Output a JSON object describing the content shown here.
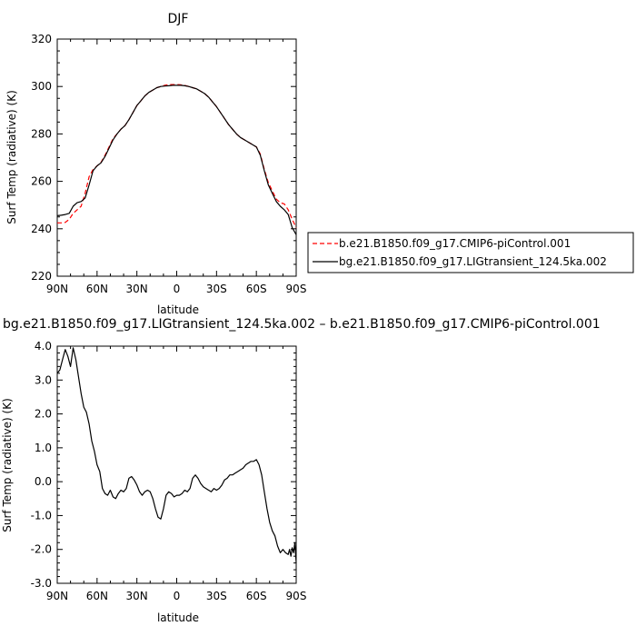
{
  "chart_data": [
    {
      "type": "line",
      "title": "DJF",
      "xlabel": "latitude",
      "ylabel": "Surf Temp (radiative) (K)",
      "x_ticks": [
        "90N",
        "60N",
        "30N",
        "0",
        "30S",
        "60S",
        "90S"
      ],
      "x_tick_values": [
        90,
        60,
        30,
        0,
        -30,
        -60,
        -90
      ],
      "y_ticks": [
        "220",
        "240",
        "260",
        "280",
        "300",
        "320"
      ],
      "ylim": [
        220,
        320
      ],
      "xlim": [
        90,
        -90
      ],
      "series": [
        {
          "name": "b.e21.B1850.f09_g17.CMIP6-piControl.001",
          "color": "#ff0000",
          "dash": "dashed",
          "x": [
            90,
            87,
            84,
            81,
            78,
            75,
            72,
            69,
            66,
            63,
            60,
            57,
            54,
            51,
            48,
            45,
            42,
            39,
            36,
            33,
            30,
            27,
            24,
            21,
            18,
            15,
            12,
            9,
            6,
            3,
            0,
            -3,
            -6,
            -9,
            -12,
            -15,
            -18,
            -21,
            -24,
            -27,
            -30,
            -33,
            -36,
            -39,
            -42,
            -45,
            -48,
            -51,
            -54,
            -57,
            -60,
            -63,
            -66,
            -69,
            -72,
            -75,
            -78,
            -81,
            -84,
            -87,
            -90
          ],
          "y": [
            242.5,
            242.5,
            242.7,
            244,
            246.5,
            248,
            249.5,
            255,
            262,
            265,
            266.5,
            268,
            271,
            274.5,
            278,
            280,
            282,
            283.5,
            286,
            289,
            292,
            294,
            296,
            297.5,
            298.5,
            299.5,
            300,
            300.5,
            300.8,
            300.8,
            300.8,
            300.7,
            300.5,
            300,
            299.5,
            299,
            298,
            297,
            295.5,
            293.5,
            291.5,
            289,
            286.5,
            284,
            282,
            280,
            278.5,
            277.5,
            276.5,
            275.5,
            274.5,
            271.5,
            265,
            259.5,
            256,
            252.5,
            251,
            250.5,
            248,
            244,
            240.5
          ]
        },
        {
          "name": "bg.e21.B1850.f09_g17.LIGtransient_124.5ka.002",
          "color": "#000000",
          "dash": "solid",
          "x": [
            90,
            87,
            84,
            81,
            78,
            75,
            72,
            69,
            66,
            63,
            60,
            57,
            54,
            51,
            48,
            45,
            42,
            39,
            36,
            33,
            30,
            27,
            24,
            21,
            18,
            15,
            12,
            9,
            6,
            3,
            0,
            -3,
            -6,
            -9,
            -12,
            -15,
            -18,
            -21,
            -24,
            -27,
            -30,
            -33,
            -36,
            -39,
            -42,
            -45,
            -48,
            -51,
            -54,
            -57,
            -60,
            -63,
            -66,
            -69,
            -72,
            -75,
            -78,
            -81,
            -84,
            -87,
            -90
          ],
          "y": [
            245.5,
            245.7,
            246,
            246.5,
            249.5,
            251,
            251.5,
            253,
            258.5,
            264.5,
            266.5,
            267.8,
            270.5,
            274,
            277.5,
            280,
            282,
            283.5,
            286,
            289,
            292,
            294,
            296,
            297.5,
            298.5,
            299.5,
            300,
            300.2,
            300.3,
            300.5,
            300.5,
            300.5,
            300.3,
            300,
            299.5,
            299,
            298,
            297,
            295.5,
            293.5,
            291.5,
            289,
            286.5,
            284,
            282,
            280,
            278.5,
            277.5,
            276.5,
            275.5,
            274.5,
            271,
            264.5,
            258.5,
            255,
            251.5,
            249.5,
            248,
            246,
            240.5,
            237.5
          ]
        }
      ],
      "legend_placement": "right"
    },
    {
      "type": "line",
      "title": "bg.e21.B1850.f09_g17.LIGtransient_124.5ka.002 – b.e21.B1850.f09_g17.CMIP6-piControl.001",
      "xlabel": "latitude",
      "ylabel": "Surf Temp (radiative) (K)",
      "x_ticks": [
        "90N",
        "60N",
        "30N",
        "0",
        "30S",
        "60S",
        "90S"
      ],
      "x_tick_values": [
        90,
        60,
        30,
        0,
        -30,
        -60,
        -90
      ],
      "y_ticks": [
        "-3.0",
        "-2.0",
        "-1.0",
        "0.0",
        "1.0",
        "2.0",
        "3.0",
        "4.0"
      ],
      "ylim": [
        -3,
        4
      ],
      "xlim": [
        90,
        -90
      ],
      "series": [
        {
          "color": "#000000",
          "dash": "solid",
          "x": [
            90,
            88,
            86,
            84,
            82,
            80,
            78,
            76,
            74,
            72,
            70,
            68,
            66,
            64,
            62,
            60,
            58,
            56,
            54,
            52,
            50,
            48,
            46,
            44,
            42,
            40,
            38,
            36,
            34,
            32,
            30,
            28,
            26,
            24,
            22,
            20,
            18,
            16,
            14,
            12,
            10,
            8,
            6,
            4,
            2,
            0,
            -2,
            -4,
            -6,
            -8,
            -10,
            -12,
            -14,
            -16,
            -18,
            -20,
            -22,
            -24,
            -26,
            -28,
            -30,
            -32,
            -34,
            -36,
            -38,
            -40,
            -42,
            -44,
            -46,
            -48,
            -50,
            -52,
            -54,
            -56,
            -58,
            -60,
            -62,
            -64,
            -66,
            -68,
            -70,
            -72,
            -74,
            -76,
            -78,
            -80,
            -82,
            -84,
            -85,
            -86,
            -87,
            -88,
            -89,
            -90
          ],
          "y": [
            3.2,
            3.3,
            3.6,
            3.9,
            3.7,
            3.4,
            3.95,
            3.6,
            3.1,
            2.6,
            2.2,
            2.05,
            1.7,
            1.2,
            0.9,
            0.5,
            0.3,
            -0.2,
            -0.35,
            -0.4,
            -0.25,
            -0.45,
            -0.5,
            -0.35,
            -0.25,
            -0.3,
            -0.2,
            0.1,
            0.15,
            0.05,
            -0.1,
            -0.3,
            -0.4,
            -0.3,
            -0.25,
            -0.3,
            -0.5,
            -0.8,
            -1.05,
            -1.1,
            -0.8,
            -0.4,
            -0.3,
            -0.35,
            -0.45,
            -0.4,
            -0.4,
            -0.35,
            -0.25,
            -0.3,
            -0.2,
            0.1,
            0.2,
            0.1,
            -0.05,
            -0.15,
            -0.2,
            -0.25,
            -0.3,
            -0.2,
            -0.25,
            -0.2,
            -0.1,
            0.05,
            0.1,
            0.2,
            0.2,
            0.25,
            0.3,
            0.35,
            0.4,
            0.5,
            0.55,
            0.6,
            0.6,
            0.65,
            0.5,
            0.2,
            -0.3,
            -0.8,
            -1.2,
            -1.45,
            -1.6,
            -1.9,
            -2.1,
            -2.0,
            -2.1,
            -2.15,
            -2.0,
            -2.2,
            -1.95,
            -2.1,
            -1.8,
            -2.4
          ]
        }
      ]
    }
  ]
}
